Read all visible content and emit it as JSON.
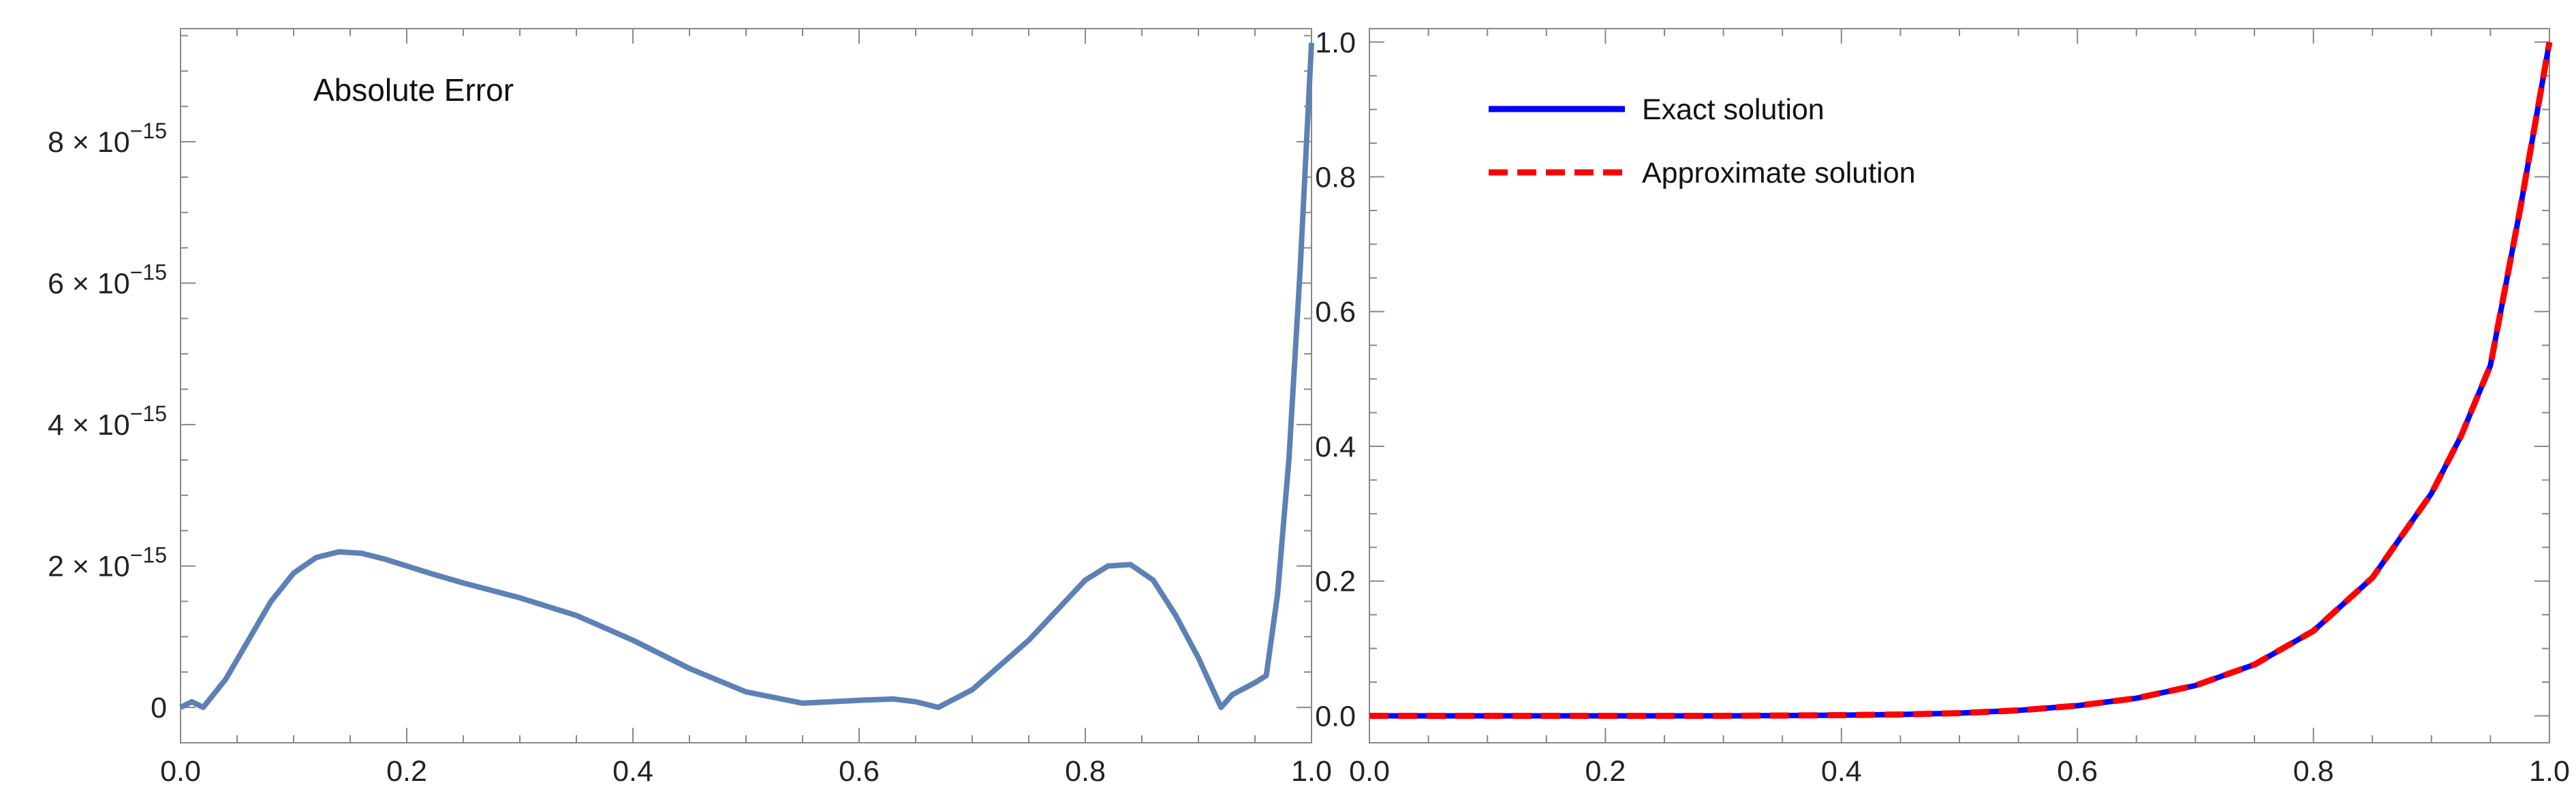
{
  "chart_data": [
    {
      "type": "line",
      "annotation": "Absolute Error",
      "xlim": [
        0,
        1
      ],
      "ylim": [
        -5e-16,
        9.6e-15
      ],
      "x_ticks": [
        {
          "value": 0,
          "label": "0.0"
        },
        {
          "value": 0.2,
          "label": "0.2"
        },
        {
          "value": 0.4,
          "label": "0.4"
        },
        {
          "value": 0.6,
          "label": "0.6"
        },
        {
          "value": 0.8,
          "label": "0.8"
        },
        {
          "value": 1.0,
          "label": "1.0"
        }
      ],
      "y_ticks": [
        {
          "value": 0,
          "mantissa": "0",
          "exponent": ""
        },
        {
          "value": 2e-15,
          "mantissa": "2 × 10",
          "exponent": "−15"
        },
        {
          "value": 4e-15,
          "mantissa": "4 × 10",
          "exponent": "−15"
        },
        {
          "value": 6e-15,
          "mantissa": "6 × 10",
          "exponent": "−15"
        },
        {
          "value": 8e-15,
          "mantissa": "8 × 10",
          "exponent": "−15"
        }
      ],
      "grid": false,
      "series": [
        {
          "color": "#5d81b5",
          "style": "solid",
          "x": [
            0.0,
            0.01,
            0.02,
            0.04,
            0.06,
            0.08,
            0.1,
            0.12,
            0.14,
            0.16,
            0.18,
            0.2,
            0.22,
            0.25,
            0.3,
            0.35,
            0.4,
            0.45,
            0.5,
            0.55,
            0.6,
            0.63,
            0.65,
            0.67,
            0.7,
            0.75,
            0.8,
            0.82,
            0.84,
            0.86,
            0.88,
            0.9,
            0.92,
            0.93,
            0.95,
            0.96,
            0.97,
            0.98,
            0.99,
            1.0
          ],
          "y": [
            0.0,
            8e-17,
            0.0,
            4e-16,
            9.5e-16,
            1.5e-15,
            1.9e-15,
            2.12e-15,
            2.2e-15,
            2.18e-15,
            2.1e-15,
            2e-15,
            1.9e-15,
            1.76e-15,
            1.55e-15,
            1.3e-15,
            9.5e-16,
            5.5e-16,
            2.2e-16,
            6e-17,
            1e-16,
            1.2e-16,
            8e-17,
            0.0,
            2.5e-16,
            9.5e-16,
            1.8e-15,
            2e-15,
            2.02e-15,
            1.8e-15,
            1.3e-15,
            7e-16,
            0.0,
            1.8e-16,
            3.5e-16,
            4.5e-16,
            1.6e-15,
            3.5e-15,
            6.2e-15,
            9.4e-15
          ]
        }
      ]
    },
    {
      "type": "line",
      "xlim": [
        0,
        1
      ],
      "ylim": [
        -0.04,
        1.02
      ],
      "x_ticks": [
        {
          "value": 0,
          "label": "0.0"
        },
        {
          "value": 0.2,
          "label": "0.2"
        },
        {
          "value": 0.4,
          "label": "0.4"
        },
        {
          "value": 0.6,
          "label": "0.6"
        },
        {
          "value": 0.8,
          "label": "0.8"
        },
        {
          "value": 1.0,
          "label": "1.0"
        }
      ],
      "y_ticks": [
        {
          "value": 0,
          "label": "0.0"
        },
        {
          "value": 0.2,
          "label": "0.2"
        },
        {
          "value": 0.4,
          "label": "0.4"
        },
        {
          "value": 0.6,
          "label": "0.6"
        },
        {
          "value": 0.8,
          "label": "0.8"
        },
        {
          "value": 1.0,
          "label": "1.0"
        }
      ],
      "grid": false,
      "legend_position": "top-left",
      "series": [
        {
          "name": "Exact solution",
          "color": "#0000ff",
          "style": "solid",
          "x": [
            0.0,
            0.1,
            0.2,
            0.3,
            0.4,
            0.45,
            0.5,
            0.55,
            0.6,
            0.65,
            0.7,
            0.75,
            0.8,
            0.85,
            0.9,
            0.925,
            0.95,
            0.975,
            1.0
          ],
          "y": [
            0.0,
            0.0,
            0.0,
            0.0,
            0.001,
            0.002,
            0.004,
            0.008,
            0.015,
            0.026,
            0.045,
            0.076,
            0.126,
            0.205,
            0.33,
            0.415,
            0.52,
            0.75,
            1.0
          ]
        },
        {
          "name": "Approximate solution",
          "color": "#ff0000",
          "style": "dashed",
          "x": [
            0.0,
            0.1,
            0.2,
            0.3,
            0.4,
            0.45,
            0.5,
            0.55,
            0.6,
            0.65,
            0.7,
            0.75,
            0.8,
            0.85,
            0.9,
            0.925,
            0.95,
            0.975,
            1.0
          ],
          "y": [
            0.0,
            0.0,
            0.0,
            0.0,
            0.001,
            0.002,
            0.004,
            0.008,
            0.015,
            0.026,
            0.045,
            0.076,
            0.126,
            0.205,
            0.33,
            0.415,
            0.52,
            0.75,
            1.0
          ]
        }
      ]
    }
  ]
}
